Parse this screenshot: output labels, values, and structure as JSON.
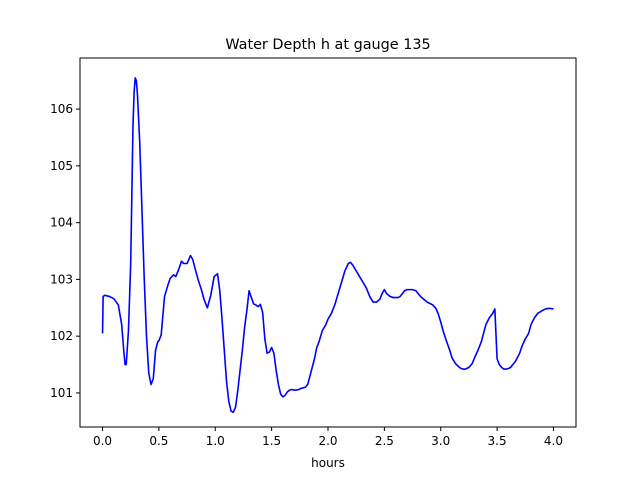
{
  "chart_data": {
    "type": "line",
    "title": "Water Depth h at gauge 135",
    "xlabel": "hours",
    "ylabel": "",
    "xlim": [
      -0.2,
      4.2
    ],
    "ylim": [
      100.4,
      106.9
    ],
    "x_ticks": [
      0.0,
      0.5,
      1.0,
      1.5,
      2.0,
      2.5,
      3.0,
      3.5,
      4.0
    ],
    "x_tick_labels": [
      "0.0",
      "0.5",
      "1.0",
      "1.5",
      "2.0",
      "2.5",
      "3.0",
      "3.5",
      "4.0"
    ],
    "y_ticks": [
      101,
      102,
      103,
      104,
      105,
      106
    ],
    "y_tick_labels": [
      "101",
      "102",
      "103",
      "104",
      "105",
      "106"
    ],
    "grid": false,
    "series": [
      {
        "color": "#0000ff",
        "x": [
          0.0,
          0.005,
          0.02,
          0.06,
          0.1,
          0.14,
          0.17,
          0.19,
          0.2,
          0.21,
          0.23,
          0.25,
          0.27,
          0.28,
          0.29,
          0.3,
          0.31,
          0.33,
          0.35,
          0.37,
          0.39,
          0.41,
          0.43,
          0.45,
          0.47,
          0.49,
          0.5,
          0.52,
          0.55,
          0.58,
          0.6,
          0.63,
          0.65,
          0.68,
          0.7,
          0.72,
          0.75,
          0.78,
          0.8,
          0.82,
          0.85,
          0.88,
          0.9,
          0.93,
          0.96,
          0.99,
          1.02,
          1.04,
          1.06,
          1.08,
          1.1,
          1.12,
          1.14,
          1.16,
          1.18,
          1.2,
          1.22,
          1.24,
          1.26,
          1.28,
          1.3,
          1.32,
          1.34,
          1.36,
          1.38,
          1.4,
          1.42,
          1.44,
          1.46,
          1.48,
          1.5,
          1.52,
          1.54,
          1.56,
          1.58,
          1.6,
          1.62,
          1.64,
          1.66,
          1.68,
          1.7,
          1.72,
          1.74,
          1.76,
          1.78,
          1.8,
          1.82,
          1.84,
          1.86,
          1.88,
          1.9,
          1.92,
          1.95,
          1.98,
          2.0,
          2.03,
          2.06,
          2.09,
          2.12,
          2.15,
          2.18,
          2.2,
          2.22,
          2.25,
          2.28,
          2.31,
          2.34,
          2.37,
          2.4,
          2.43,
          2.46,
          2.48,
          2.5,
          2.52,
          2.55,
          2.58,
          2.6,
          2.62,
          2.64,
          2.66,
          2.68,
          2.7,
          2.72,
          2.75,
          2.78,
          2.8,
          2.82,
          2.85,
          2.88,
          2.9,
          2.93,
          2.96,
          2.98,
          3.0,
          3.02,
          3.05,
          3.08,
          3.1,
          3.13,
          3.16,
          3.18,
          3.2,
          3.22,
          3.25,
          3.28,
          3.3,
          3.33,
          3.36,
          3.38,
          3.4,
          3.43,
          3.46,
          3.48,
          3.5,
          3.52,
          3.54,
          3.56,
          3.58,
          3.6,
          3.62,
          3.64,
          3.66,
          3.68,
          3.7,
          3.72,
          3.75,
          3.78,
          3.8,
          3.83,
          3.86,
          3.9,
          3.93,
          3.96,
          4.0
        ],
        "y": [
          102.05,
          102.7,
          102.72,
          102.7,
          102.66,
          102.55,
          102.2,
          101.7,
          101.5,
          101.5,
          102.1,
          103.3,
          105.7,
          106.3,
          106.55,
          106.5,
          106.25,
          105.4,
          104.2,
          103.0,
          102.0,
          101.35,
          101.15,
          101.25,
          101.75,
          101.9,
          101.92,
          102.02,
          102.7,
          102.9,
          103.02,
          103.08,
          103.05,
          103.2,
          103.32,
          103.28,
          103.28,
          103.42,
          103.35,
          103.2,
          102.98,
          102.8,
          102.65,
          102.5,
          102.72,
          103.05,
          103.1,
          102.8,
          102.3,
          101.75,
          101.2,
          100.85,
          100.68,
          100.66,
          100.75,
          101.05,
          101.4,
          101.75,
          102.15,
          102.45,
          102.8,
          102.68,
          102.57,
          102.55,
          102.52,
          102.56,
          102.42,
          101.95,
          101.7,
          101.72,
          101.8,
          101.7,
          101.4,
          101.15,
          100.98,
          100.93,
          100.96,
          101.02,
          101.05,
          101.06,
          101.05,
          101.05,
          101.06,
          101.08,
          101.09,
          101.1,
          101.15,
          101.3,
          101.45,
          101.6,
          101.8,
          101.9,
          102.1,
          102.2,
          102.3,
          102.4,
          102.55,
          102.75,
          102.95,
          103.15,
          103.28,
          103.3,
          103.25,
          103.15,
          103.05,
          102.95,
          102.85,
          102.7,
          102.6,
          102.6,
          102.65,
          102.75,
          102.82,
          102.75,
          102.7,
          102.68,
          102.68,
          102.68,
          102.7,
          102.75,
          102.8,
          102.82,
          102.82,
          102.82,
          102.8,
          102.75,
          102.7,
          102.65,
          102.6,
          102.58,
          102.55,
          102.48,
          102.38,
          102.25,
          102.1,
          101.92,
          101.75,
          101.62,
          101.52,
          101.46,
          101.43,
          101.42,
          101.42,
          101.45,
          101.52,
          101.62,
          101.75,
          101.9,
          102.05,
          102.2,
          102.32,
          102.4,
          102.48,
          101.6,
          101.5,
          101.45,
          101.42,
          101.42,
          101.43,
          101.45,
          101.5,
          101.55,
          101.62,
          101.7,
          101.82,
          101.95,
          102.05,
          102.2,
          102.32,
          102.4,
          102.45,
          102.48,
          102.49,
          102.48
        ]
      }
    ]
  }
}
